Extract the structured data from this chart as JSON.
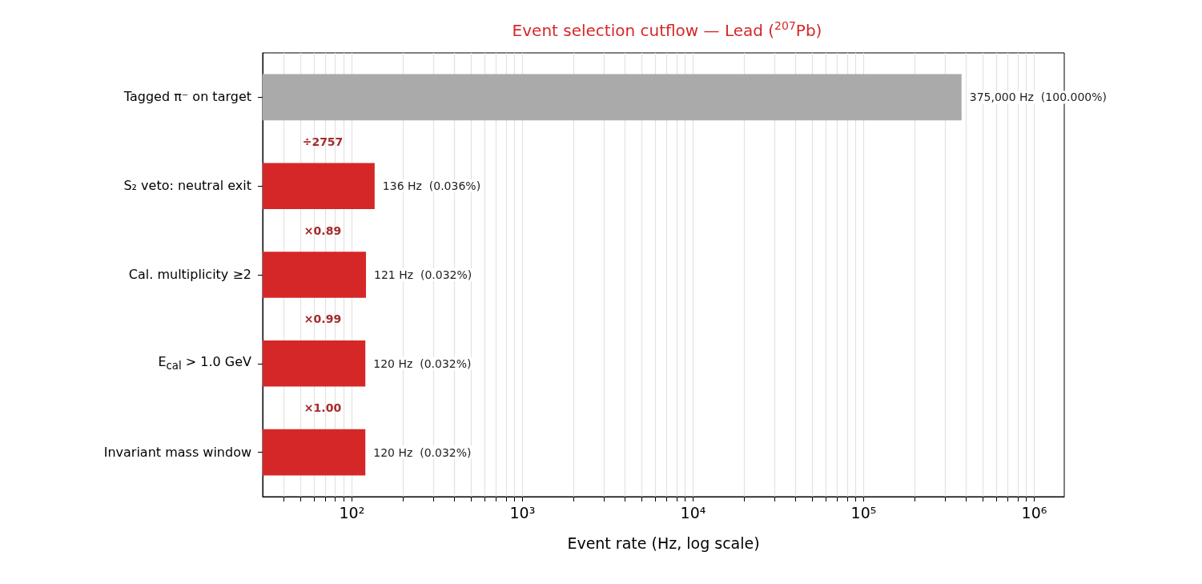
{
  "chart_data": {
    "type": "bar",
    "orientation": "horizontal",
    "title": "Event selection cutflow — Lead ($^{207}$Pb)",
    "xlabel": "Event rate (Hz, log scale)",
    "categories": [
      "Tagged π⁻ on target",
      "S₂ veto: neutral exit",
      "Cal. multiplicity ≥2",
      "E$_{cal}$ > 1.0 GeV",
      "Invariant mass window"
    ],
    "values": [
      375000,
      136,
      121,
      120,
      120
    ],
    "colors": [
      "#aaaaaa",
      "#d62728",
      "#d62728",
      "#d62728",
      "#d62728"
    ],
    "value_labels": [
      "375,000 Hz  (100.000%)",
      "136 Hz  (0.036%)",
      "121 Hz  (0.032%)",
      "120 Hz  (0.032%)",
      "120 Hz  (0.032%)"
    ],
    "annotations": [
      "÷2757",
      "×0.89",
      "×0.99",
      "×1.00"
    ],
    "log": "x",
    "grid": "x",
    "xlim": [
      30,
      1500000
    ],
    "xticks": [
      {
        "value": 40,
        "label": null
      },
      {
        "value": 50,
        "label": null
      },
      {
        "value": 60,
        "label": null
      },
      {
        "value": 70,
        "label": null
      },
      {
        "value": 80,
        "label": null
      },
      {
        "value": 90,
        "label": null
      },
      {
        "value": 100,
        "label": "10²"
      },
      {
        "value": 200,
        "label": null
      },
      {
        "value": 300,
        "label": null
      },
      {
        "value": 400,
        "label": null
      },
      {
        "value": 500,
        "label": null
      },
      {
        "value": 600,
        "label": null
      },
      {
        "value": 700,
        "label": null
      },
      {
        "value": 800,
        "label": null
      },
      {
        "value": 900,
        "label": null
      },
      {
        "value": 1000,
        "label": "10³"
      },
      {
        "value": 2000,
        "label": null
      },
      {
        "value": 3000,
        "label": null
      },
      {
        "value": 4000,
        "label": null
      },
      {
        "value": 5000,
        "label": null
      },
      {
        "value": 6000,
        "label": null
      },
      {
        "value": 7000,
        "label": null
      },
      {
        "value": 8000,
        "label": null
      },
      {
        "value": 9000,
        "label": null
      },
      {
        "value": 10000,
        "label": "10⁴"
      },
      {
        "value": 20000,
        "label": null
      },
      {
        "value": 30000,
        "label": null
      },
      {
        "value": 40000,
        "label": null
      },
      {
        "value": 50000,
        "label": null
      },
      {
        "value": 60000,
        "label": null
      },
      {
        "value": 70000,
        "label": null
      },
      {
        "value": 80000,
        "label": null
      },
      {
        "value": 90000,
        "label": null
      },
      {
        "value": 100000,
        "label": "10⁵"
      },
      {
        "value": 200000,
        "label": null
      },
      {
        "value": 300000,
        "label": null
      },
      {
        "value": 400000,
        "label": null
      },
      {
        "value": 500000,
        "label": null
      },
      {
        "value": 600000,
        "label": null
      },
      {
        "value": 700000,
        "label": null
      },
      {
        "value": 800000,
        "label": null
      },
      {
        "value": 900000,
        "label": null
      },
      {
        "value": 1000000,
        "label": "10⁶"
      }
    ]
  }
}
